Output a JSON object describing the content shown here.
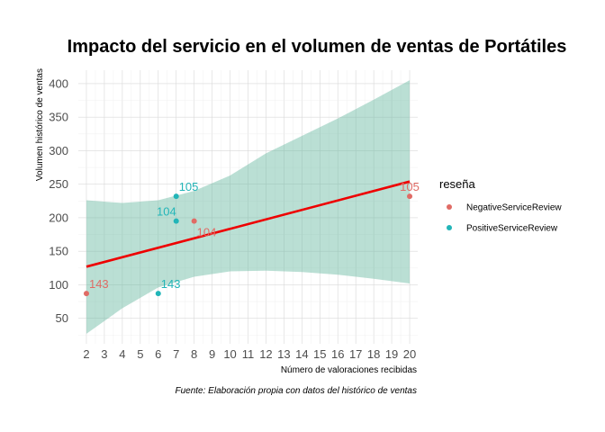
{
  "chart_data": {
    "type": "scatter",
    "title": "Impacto del servicio en el volumen de ventas de Portátiles",
    "xlabel": "Número de valoraciones recibidas",
    "ylabel": "Volumen histórico de ventas",
    "caption": "Fuente: Elaboración propia con datos del histórico de ventas",
    "xlim": [
      1.55,
      20.45
    ],
    "ylim": [
      12,
      420
    ],
    "x_ticks": [
      2,
      3,
      4,
      5,
      6,
      7,
      8,
      9,
      10,
      11,
      12,
      13,
      14,
      15,
      16,
      17,
      18,
      19,
      20
    ],
    "y_ticks": [
      50,
      100,
      150,
      200,
      250,
      300,
      350,
      400
    ],
    "grid": true,
    "legend": {
      "title": "reseña",
      "position": "right",
      "entries": [
        {
          "name": "NegativeServiceReview",
          "color": "#E06B65"
        },
        {
          "name": "PositiveServiceReview",
          "color": "#22B5B8"
        }
      ]
    },
    "points": [
      {
        "x": 2,
        "y": 87,
        "label": "143",
        "group": "NegativeServiceReview",
        "color": "#E06B65"
      },
      {
        "x": 8,
        "y": 195,
        "label": "104",
        "group": "NegativeServiceReview",
        "color": "#E06B65"
      },
      {
        "x": 20,
        "y": 232,
        "label": "105",
        "group": "NegativeServiceReview",
        "color": "#E06B65"
      },
      {
        "x": 6,
        "y": 87,
        "label": "143",
        "group": "PositiveServiceReview",
        "color": "#22B5B8"
      },
      {
        "x": 7,
        "y": 195,
        "label": "104",
        "group": "PositiveServiceReview",
        "color": "#22B5B8"
      },
      {
        "x": 7,
        "y": 232,
        "label": "105",
        "group": "PositiveServiceReview",
        "color": "#22B5B8"
      }
    ],
    "regression_line": {
      "color": "#EE0000",
      "x": [
        2,
        20
      ],
      "y": [
        127,
        254
      ]
    },
    "confidence_band": {
      "color": "#66B8A0",
      "x": [
        2,
        4,
        6,
        8,
        10,
        12,
        14,
        16,
        18,
        20
      ],
      "upper": [
        226,
        222,
        226,
        240,
        263,
        296,
        322,
        348,
        376,
        405
      ],
      "lower": [
        27,
        65,
        96,
        112,
        120,
        121,
        119,
        115,
        109,
        102
      ]
    }
  }
}
